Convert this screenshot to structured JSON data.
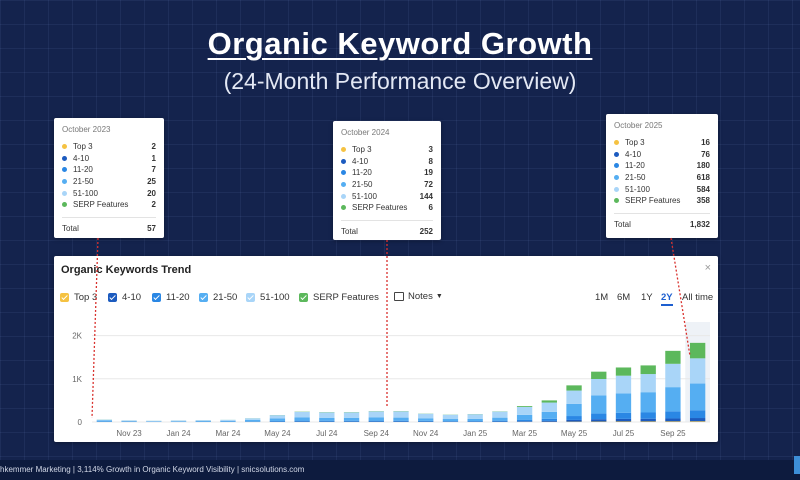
{
  "header": {
    "title": "Organic Keyword Growth",
    "subtitle": "(24-Month Performance Overview)"
  },
  "callouts": [
    {
      "date": "October 2023",
      "rows": [
        {
          "label": "Top 3",
          "value": "2",
          "color": "#f5c242"
        },
        {
          "label": "4-10",
          "value": "1",
          "color": "#1c5bbf"
        },
        {
          "label": "11-20",
          "value": "7",
          "color": "#2a87e4"
        },
        {
          "label": "21-50",
          "value": "25",
          "color": "#55aef2"
        },
        {
          "label": "51-100",
          "value": "20",
          "color": "#a9d5f8"
        },
        {
          "label": "SERP Features",
          "value": "2",
          "color": "#5cb85c"
        }
      ],
      "total_label": "Total",
      "total_value": "57"
    },
    {
      "date": "October 2024",
      "rows": [
        {
          "label": "Top 3",
          "value": "3",
          "color": "#f5c242"
        },
        {
          "label": "4-10",
          "value": "8",
          "color": "#1c5bbf"
        },
        {
          "label": "11-20",
          "value": "19",
          "color": "#2a87e4"
        },
        {
          "label": "21-50",
          "value": "72",
          "color": "#55aef2"
        },
        {
          "label": "51-100",
          "value": "144",
          "color": "#a9d5f8"
        },
        {
          "label": "SERP Features",
          "value": "6",
          "color": "#5cb85c"
        }
      ],
      "total_label": "Total",
      "total_value": "252"
    },
    {
      "date": "October 2025",
      "rows": [
        {
          "label": "Top 3",
          "value": "16",
          "color": "#f5c242"
        },
        {
          "label": "4-10",
          "value": "76",
          "color": "#1c5bbf"
        },
        {
          "label": "11-20",
          "value": "180",
          "color": "#2a87e4"
        },
        {
          "label": "21-50",
          "value": "618",
          "color": "#55aef2"
        },
        {
          "label": "51-100",
          "value": "584",
          "color": "#a9d5f8"
        },
        {
          "label": "SERP Features",
          "value": "358",
          "color": "#5cb85c"
        }
      ],
      "total_label": "Total",
      "total_value": "1,832"
    }
  ],
  "panel": {
    "title": "Organic Keywords Trend",
    "close": "×",
    "notes_label": "Notes",
    "legend": [
      {
        "label": "Top 3",
        "color": "#f5c242"
      },
      {
        "label": "4-10",
        "color": "#1c5bbf"
      },
      {
        "label": "11-20",
        "color": "#2a87e4"
      },
      {
        "label": "21-50",
        "color": "#55aef2"
      },
      {
        "label": "51-100",
        "color": "#a9d5f8"
      },
      {
        "label": "SERP Features",
        "color": "#5cb85c"
      }
    ],
    "ranges": [
      "1M",
      "6M",
      "1Y",
      "2Y",
      "All time"
    ],
    "active_range": "2Y"
  },
  "chart_data": {
    "type": "bar",
    "stacked": true,
    "x": [
      "Oct 23",
      "Nov 23",
      "Dec 23",
      "Jan 24",
      "Feb 24",
      "Mar 24",
      "Apr 24",
      "May 24",
      "Jun 24",
      "Jul 24",
      "Aug 24",
      "Sep 24",
      "Oct 24",
      "Nov 24",
      "Dec 24",
      "Jan 25",
      "Feb 25",
      "Mar 25",
      "Apr 25",
      "May 25",
      "Jun 25",
      "Jul 25",
      "Aug 25",
      "Sep 25",
      "Oct 25"
    ],
    "x_tick_labels": [
      "Nov 23",
      "Jan 24",
      "Mar 24",
      "May 24",
      "Jul 24",
      "Sep 24",
      "Nov 24",
      "Jan 25",
      "Mar 25",
      "May 25",
      "Jul 25",
      "Sep 25"
    ],
    "y_tick_labels": [
      "0",
      "1K",
      "2K"
    ],
    "ylim": [
      0,
      2500
    ],
    "series": [
      {
        "name": "Top 3",
        "color": "#f5c242",
        "values": [
          2,
          2,
          1,
          1,
          1,
          1,
          2,
          2,
          3,
          3,
          3,
          3,
          3,
          3,
          2,
          2,
          3,
          4,
          5,
          8,
          10,
          12,
          13,
          14,
          16
        ]
      },
      {
        "name": "4-10",
        "color": "#1c5bbf",
        "values": [
          1,
          1,
          1,
          1,
          1,
          1,
          2,
          4,
          7,
          7,
          7,
          8,
          8,
          7,
          6,
          6,
          8,
          15,
          20,
          40,
          55,
          60,
          62,
          68,
          76
        ]
      },
      {
        "name": "11-20",
        "color": "#2a87e4",
        "values": [
          7,
          4,
          3,
          4,
          5,
          6,
          10,
          18,
          22,
          20,
          20,
          21,
          19,
          16,
          13,
          14,
          20,
          35,
          50,
          90,
          130,
          140,
          145,
          165,
          180
        ]
      },
      {
        "name": "21-50",
        "color": "#55aef2",
        "values": [
          25,
          15,
          12,
          14,
          18,
          20,
          34,
          60,
          72,
          68,
          68,
          72,
          72,
          55,
          48,
          52,
          70,
          110,
          160,
          280,
          420,
          450,
          470,
          560,
          618
        ]
      },
      {
        "name": "51-100",
        "color": "#a9d5f8",
        "values": [
          20,
          15,
          12,
          15,
          19,
          22,
          37,
          75,
          130,
          125,
          125,
          140,
          144,
          110,
          98,
          106,
          140,
          185,
          215,
          310,
          380,
          410,
          420,
          540,
          584
        ]
      },
      {
        "name": "SERP Features",
        "color": "#5cb85c",
        "values": [
          2,
          1,
          1,
          1,
          1,
          1,
          2,
          3,
          6,
          6,
          6,
          6,
          6,
          4,
          4,
          4,
          5,
          20,
          50,
          120,
          170,
          190,
          200,
          300,
          358
        ]
      }
    ]
  },
  "footer": {
    "text": "hkemmer Marketing | 3,114% Growth in Organic Keyword Visibility | snicsolutions.com"
  }
}
